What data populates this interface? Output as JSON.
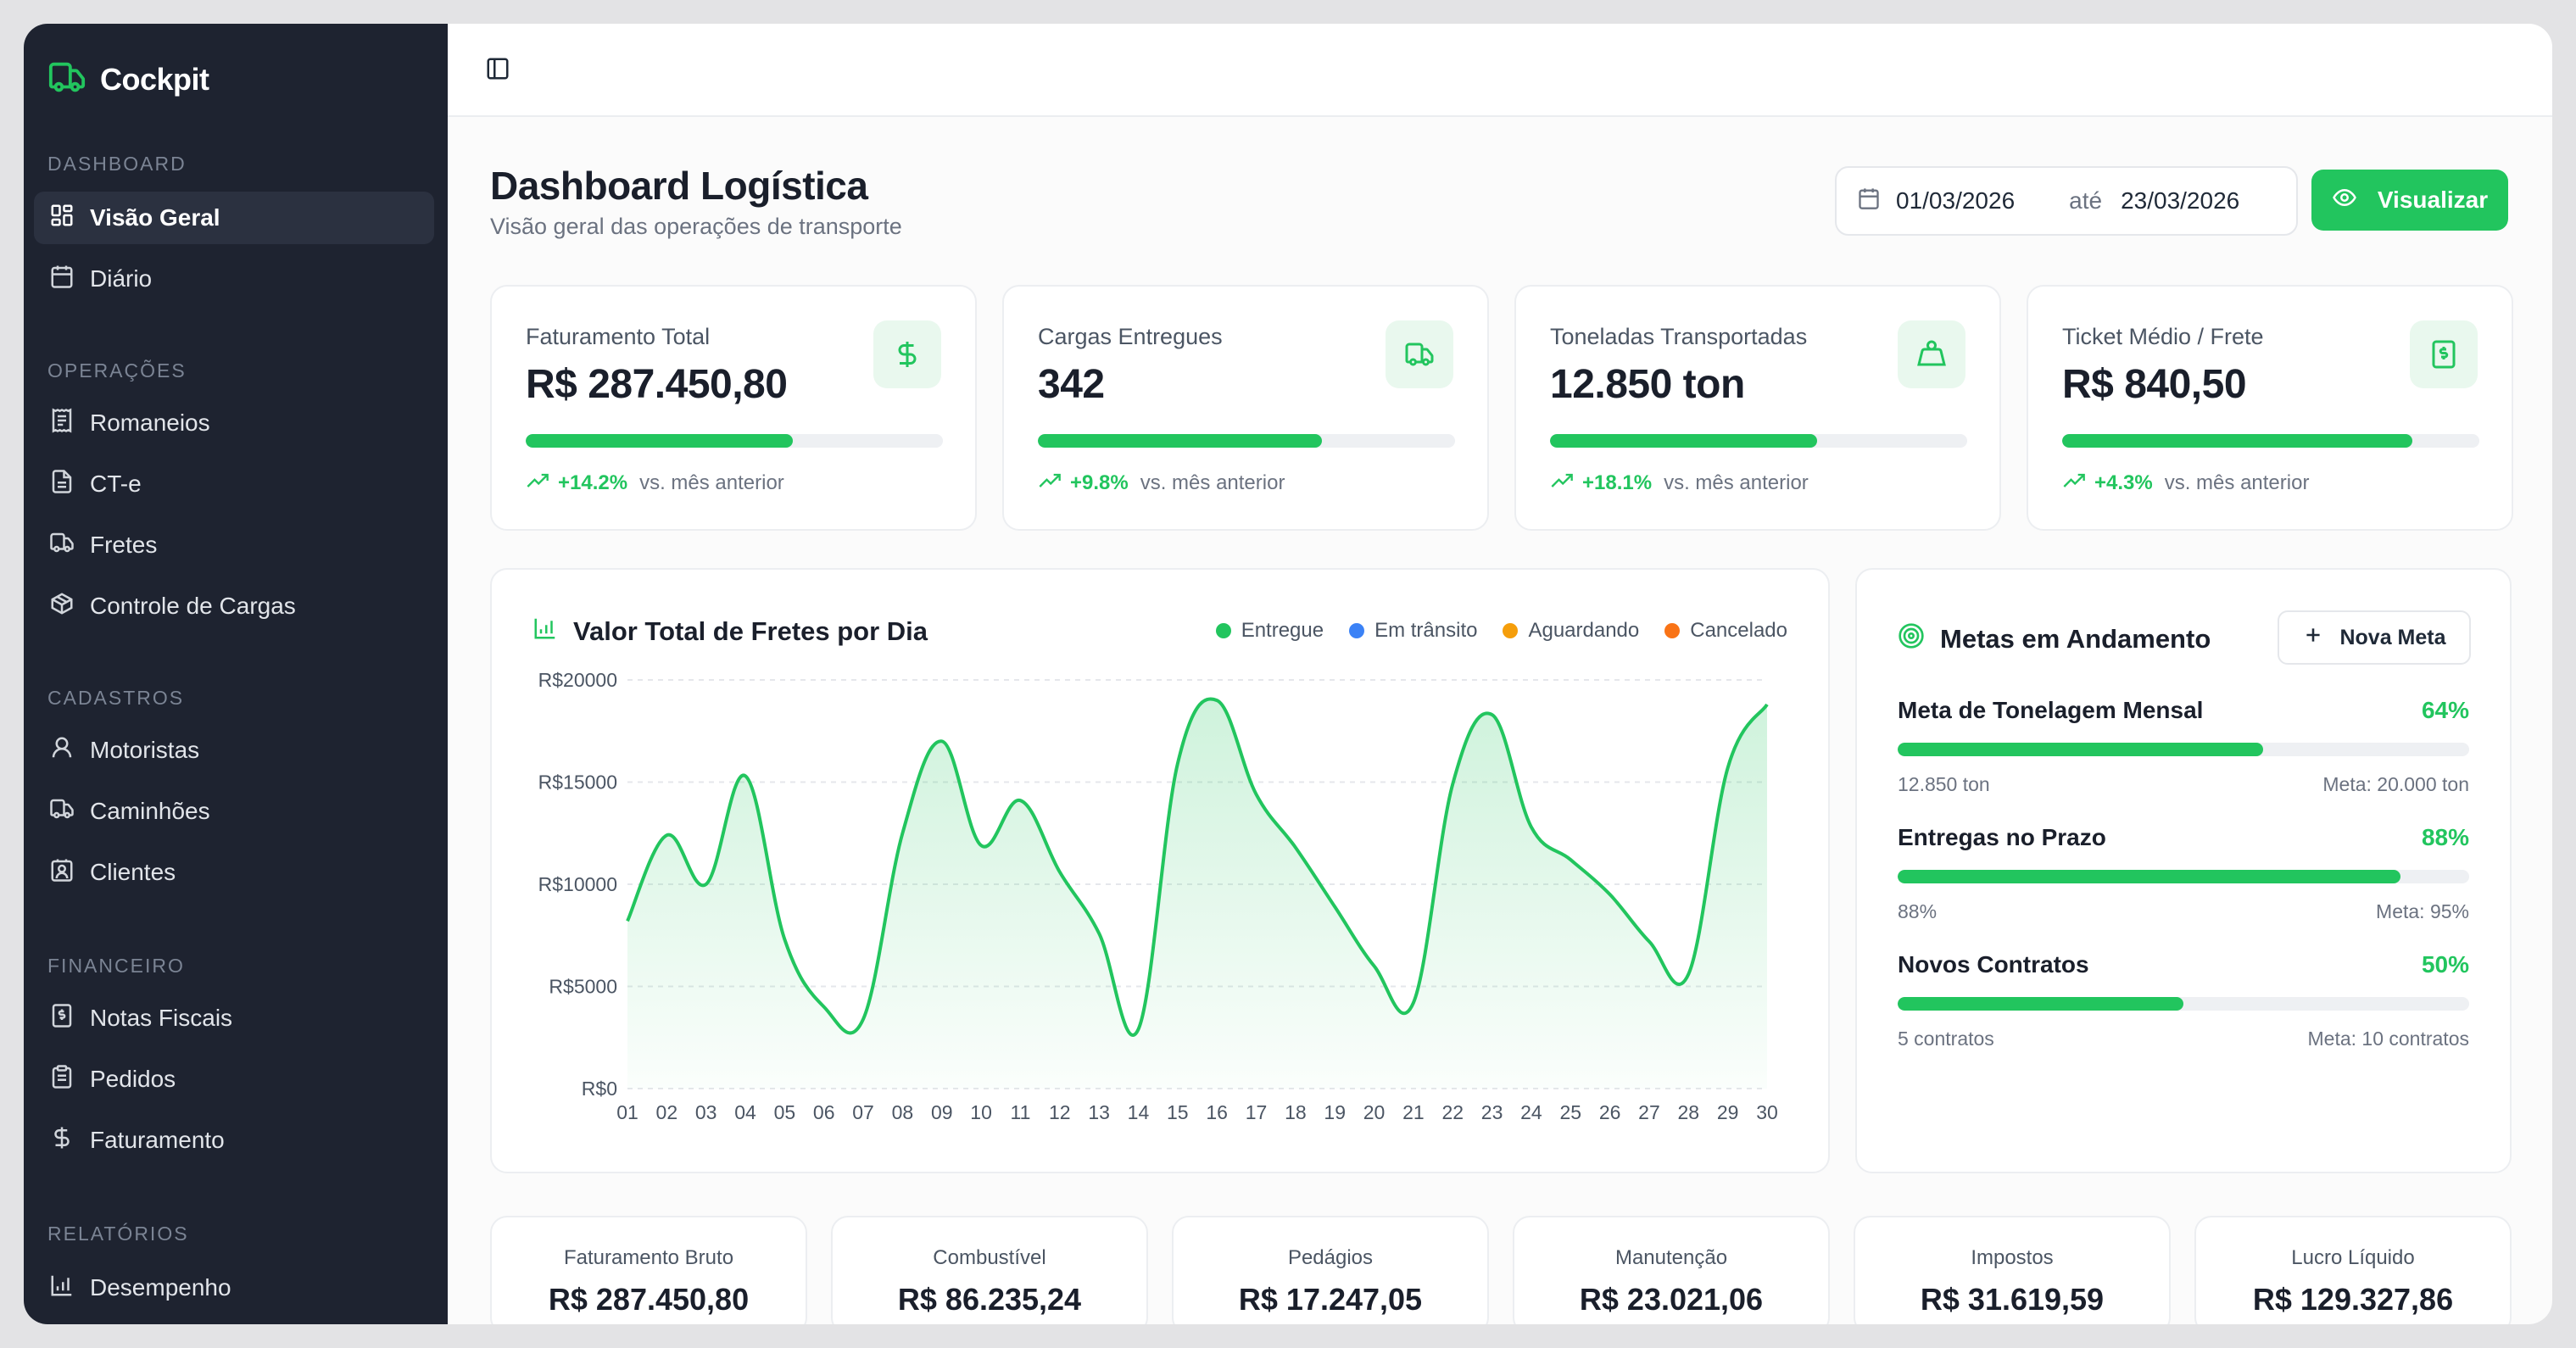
{
  "sidebar": {
    "brand": "Cockpit",
    "sections": [
      {
        "title": "DASHBOARD",
        "items": [
          {
            "label": "Visão Geral",
            "icon": "grid-icon",
            "active": true
          },
          {
            "label": "Diário",
            "icon": "calendar-icon"
          }
        ]
      },
      {
        "title": "OPERAÇÕES",
        "items": [
          {
            "label": "Romaneios",
            "icon": "receipt-icon"
          },
          {
            "label": "CT-e",
            "icon": "document-icon"
          },
          {
            "label": "Fretes",
            "icon": "truck-icon"
          },
          {
            "label": "Controle de Cargas",
            "icon": "package-icon"
          }
        ]
      },
      {
        "title": "CADASTROS",
        "items": [
          {
            "label": "Motoristas",
            "icon": "user-icon"
          },
          {
            "label": "Caminhões",
            "icon": "truck-icon"
          },
          {
            "label": "Clientes",
            "icon": "contact-icon"
          }
        ]
      },
      {
        "title": "FINANCEIRO",
        "items": [
          {
            "label": "Notas Fiscais",
            "icon": "invoice-icon"
          },
          {
            "label": "Pedidos",
            "icon": "clipboard-icon"
          },
          {
            "label": "Faturamento",
            "icon": "dollar-icon"
          }
        ]
      },
      {
        "title": "RELATÓRIOS",
        "items": [
          {
            "label": "Desempenho",
            "icon": "bar-chart-icon"
          }
        ]
      }
    ]
  },
  "header": {
    "title": "Dashboard Logística",
    "subtitle": "Visão geral das operações de transporte",
    "date_from": "01/03/2026",
    "date_sep": "até",
    "date_to": "23/03/2026",
    "visualizar_label": "Visualizar"
  },
  "kpis": [
    {
      "label": "Faturamento Total",
      "value": "R$ 287.450,80",
      "progress": 0.64,
      "trend": "+14.2%",
      "trend_text": "vs. mês anterior",
      "icon": "dollar-icon"
    },
    {
      "label": "Cargas Entregues",
      "value": "342",
      "progress": 0.68,
      "trend": "+9.8%",
      "trend_text": "vs. mês anterior",
      "icon": "truck-icon"
    },
    {
      "label": "Toneladas Transportadas",
      "value": "12.850 ton",
      "progress": 0.64,
      "trend": "+18.1%",
      "trend_text": "vs. mês anterior",
      "icon": "weight-icon"
    },
    {
      "label": "Ticket Médio / Frete",
      "value": "R$ 840,50",
      "progress": 0.84,
      "trend": "+4.3%",
      "trend_text": "vs. mês anterior",
      "icon": "receipt-dollar-icon"
    }
  ],
  "chart_data": {
    "type": "area",
    "title": "Valor Total de Fretes por Dia",
    "legend": [
      "Entregue",
      "Em trânsito",
      "Aguardando",
      "Cancelado"
    ],
    "legend_colors": [
      "#22c55e",
      "#3b82f6",
      "#f59e0b",
      "#f97316"
    ],
    "legend_position": "top-right",
    "grid": true,
    "ylim": [
      0,
      20000
    ],
    "yticks": [
      "R$20000",
      "R$15000",
      "R$10000",
      "R$5000",
      "R$0"
    ],
    "x": [
      "01",
      "02",
      "03",
      "04",
      "05",
      "06",
      "07",
      "08",
      "09",
      "10",
      "11",
      "12",
      "13",
      "14",
      "15",
      "16",
      "17",
      "18",
      "19",
      "20",
      "21",
      "22",
      "23",
      "24",
      "25",
      "26",
      "27",
      "28",
      "29",
      "30"
    ],
    "series": [
      {
        "name": "Entregue",
        "color": "#22c55e",
        "values": [
          8200,
          12400,
          10000,
          15300,
          7300,
          4000,
          3400,
          12500,
          17000,
          11900,
          14100,
          10600,
          7600,
          2900,
          15900,
          19000,
          14400,
          11800,
          8900,
          6000,
          4200,
          14900,
          18300,
          12800,
          11200,
          9500,
          7200,
          5600,
          15700,
          18800
        ]
      }
    ]
  },
  "metas": {
    "title": "Metas em Andamento",
    "new_label": "Nova Meta",
    "goals": [
      {
        "name": "Meta de Tonelagem Mensal",
        "pct_label": "64%",
        "progress": 0.64,
        "left": "12.850 ton",
        "right": "Meta: 20.000 ton"
      },
      {
        "name": "Entregas no Prazo",
        "pct_label": "88%",
        "progress": 0.88,
        "left": "88%",
        "right": "Meta: 95%"
      },
      {
        "name": "Novos Contratos",
        "pct_label": "50%",
        "progress": 0.5,
        "left": "5 contratos",
        "right": "Meta: 10 contratos"
      }
    ]
  },
  "summary": [
    {
      "label": "Faturamento Bruto",
      "value": "R$ 287.450,80"
    },
    {
      "label": "Combustível",
      "value": "R$ 86.235,24"
    },
    {
      "label": "Pedágios",
      "value": "R$ 17.247,05"
    },
    {
      "label": "Manutenção",
      "value": "R$ 23.021,06"
    },
    {
      "label": "Impostos",
      "value": "R$ 31.619,59"
    },
    {
      "label": "Lucro Líquido",
      "value": "R$ 129.327,86"
    }
  ],
  "colors": {
    "accent": "#22c55e",
    "sidebar_bg": "#1e2330"
  }
}
